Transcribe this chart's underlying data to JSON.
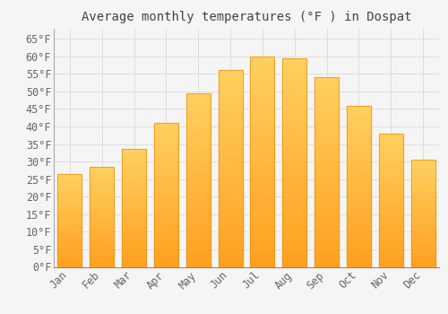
{
  "title": "Average monthly temperatures (°F ) in Dospat",
  "months": [
    "Jan",
    "Feb",
    "Mar",
    "Apr",
    "May",
    "Jun",
    "Jul",
    "Aug",
    "Sep",
    "Oct",
    "Nov",
    "Dec"
  ],
  "values": [
    26.5,
    28.5,
    33.5,
    41.0,
    49.5,
    56.0,
    60.0,
    59.5,
    54.0,
    46.0,
    38.0,
    30.5
  ],
  "bar_color_top": "#FFD060",
  "bar_color_bottom": "#FFA020",
  "bar_edge_color": "#E89010",
  "background_color": "#F5F5F5",
  "grid_color": "#DDDDDD",
  "ylim": [
    0,
    68
  ],
  "yticks": [
    0,
    5,
    10,
    15,
    20,
    25,
    30,
    35,
    40,
    45,
    50,
    55,
    60,
    65
  ],
  "title_fontsize": 10,
  "tick_fontsize": 8.5,
  "title_color": "#444444",
  "tick_color": "#666666",
  "font_family": "monospace"
}
